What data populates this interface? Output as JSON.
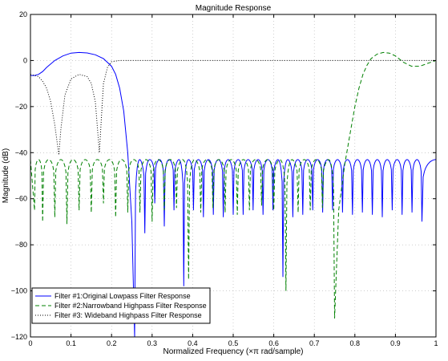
{
  "chart_data": {
    "type": "line",
    "title": "Magnitude Response",
    "xlabel": "Normalized Frequency  (×π rad/sample)",
    "ylabel": "Magnitude (dB)",
    "xlim": [
      0,
      1
    ],
    "ylim": [
      -120,
      20
    ],
    "xticks": [
      0,
      0.1,
      0.2,
      0.3,
      0.4,
      0.5,
      0.6,
      0.7,
      0.8,
      0.9,
      1
    ],
    "xtick_labels": [
      "0",
      "0.1",
      "0.2",
      "0.3",
      "0.4",
      "0.5",
      "0.6",
      "0.7",
      "0.8",
      "0.9",
      "1"
    ],
    "yticks": [
      -120,
      -100,
      -80,
      -60,
      -40,
      -20,
      0,
      20
    ],
    "ytick_labels": [
      "−120",
      "−100",
      "−80",
      "−60",
      "−40",
      "−20",
      "0",
      "20"
    ],
    "grid": true,
    "legend_position": "bottom-left",
    "series": [
      {
        "name": "Filter #1:Original Lowpass Filter Response",
        "color": "#0000ff",
        "style": "solid",
        "passband_edge": 0.2,
        "stopband_edge": 0.25,
        "passband": [
          [
            0,
            -6.5
          ],
          [
            0.01,
            -6.5
          ],
          [
            0.02,
            -6
          ],
          [
            0.03,
            -4.8
          ],
          [
            0.04,
            -3
          ],
          [
            0.06,
            0
          ],
          [
            0.08,
            2
          ],
          [
            0.1,
            3.2
          ],
          [
            0.12,
            3.5
          ],
          [
            0.14,
            3.3
          ],
          [
            0.16,
            2.5
          ],
          [
            0.18,
            0.8
          ],
          [
            0.2,
            -2.5
          ],
          [
            0.21,
            -6
          ],
          [
            0.22,
            -12
          ],
          [
            0.23,
            -22
          ],
          [
            0.24,
            -40
          ],
          [
            0.25,
            -70
          ],
          [
            0.257,
            -120
          ]
        ],
        "stopband_nulls": [
          0.257,
          0.282,
          0.3065,
          0.33,
          0.354,
          0.378,
          0.402,
          0.4265,
          0.451,
          0.4755,
          0.5,
          0.5245,
          0.549,
          0.5735,
          0.598,
          0.6225,
          0.647,
          0.6715,
          0.696,
          0.7205,
          0.745,
          0.7695,
          0.794,
          0.8185,
          0.843,
          0.8675,
          0.892,
          0.9165,
          0.941,
          0.9655
        ],
        "null_depths": [
          -120,
          -75,
          -62,
          -72,
          -65,
          -98,
          -65,
          -68,
          -67,
          -68,
          -67,
          -67,
          -65,
          -67,
          -65,
          -94,
          -68,
          -67,
          -65,
          -66,
          -65,
          -66,
          -67,
          -66,
          -67,
          -68,
          -65,
          -67,
          -66,
          -70
        ],
        "sidelobe_level": -43
      },
      {
        "name": "Filter #2:Narrowband Highpass Filter Response",
        "color": "#008000",
        "style": "dashed",
        "stopband_nulls": [
          0.01,
          0.03,
          0.06,
          0.09,
          0.12,
          0.15,
          0.18,
          0.21,
          0.24,
          0.27,
          0.3,
          0.33,
          0.36,
          0.39,
          0.42,
          0.45,
          0.48,
          0.51,
          0.54,
          0.57,
          0.6,
          0.63,
          0.66,
          0.69,
          0.72,
          0.75
        ],
        "null_depths": [
          -65,
          -70,
          -68,
          -71,
          -65,
          -66,
          -62,
          -68,
          -66,
          -66,
          -70,
          -65,
          -64,
          -95,
          -66,
          -64,
          -66,
          -67,
          -65,
          -63,
          -65,
          -100,
          -66,
          -65,
          -64,
          -112
        ],
        "sidelobe_level": -43,
        "transition": [
          [
            0.75,
            -112
          ],
          [
            0.76,
            -65
          ],
          [
            0.775,
            -45
          ],
          [
            0.79,
            -30
          ],
          [
            0.8,
            -20
          ],
          [
            0.81,
            -12
          ],
          [
            0.82,
            -6
          ],
          [
            0.83,
            -2
          ],
          [
            0.84,
            0.8
          ],
          [
            0.855,
            2.8
          ],
          [
            0.87,
            3.5
          ],
          [
            0.885,
            3.2
          ],
          [
            0.9,
            2
          ],
          [
            0.92,
            -0.8
          ],
          [
            0.94,
            -2.5
          ],
          [
            0.96,
            -2.5
          ],
          [
            0.98,
            -1.2
          ],
          [
            1,
            0
          ]
        ]
      },
      {
        "name": "Filter #3: Wideband Highpass Filter Response",
        "color": "#000000",
        "style": "dotted",
        "points": [
          [
            0,
            -6
          ],
          [
            0.01,
            -6.5
          ],
          [
            0.02,
            -7
          ],
          [
            0.03,
            -9
          ],
          [
            0.04,
            -12
          ],
          [
            0.05,
            -18
          ],
          [
            0.06,
            -28
          ],
          [
            0.07,
            -41
          ],
          [
            0.075,
            -30
          ],
          [
            0.085,
            -15
          ],
          [
            0.1,
            -8
          ],
          [
            0.12,
            -6
          ],
          [
            0.14,
            -7
          ],
          [
            0.15,
            -10
          ],
          [
            0.16,
            -18
          ],
          [
            0.17,
            -40
          ],
          [
            0.175,
            -25
          ],
          [
            0.18,
            -10
          ],
          [
            0.19,
            -3
          ],
          [
            0.2,
            -0.5
          ],
          [
            0.22,
            0
          ],
          [
            0.25,
            0
          ],
          [
            0.3,
            0
          ],
          [
            0.5,
            0
          ],
          [
            0.7,
            0
          ],
          [
            0.9,
            0
          ],
          [
            1,
            0
          ]
        ]
      }
    ]
  }
}
